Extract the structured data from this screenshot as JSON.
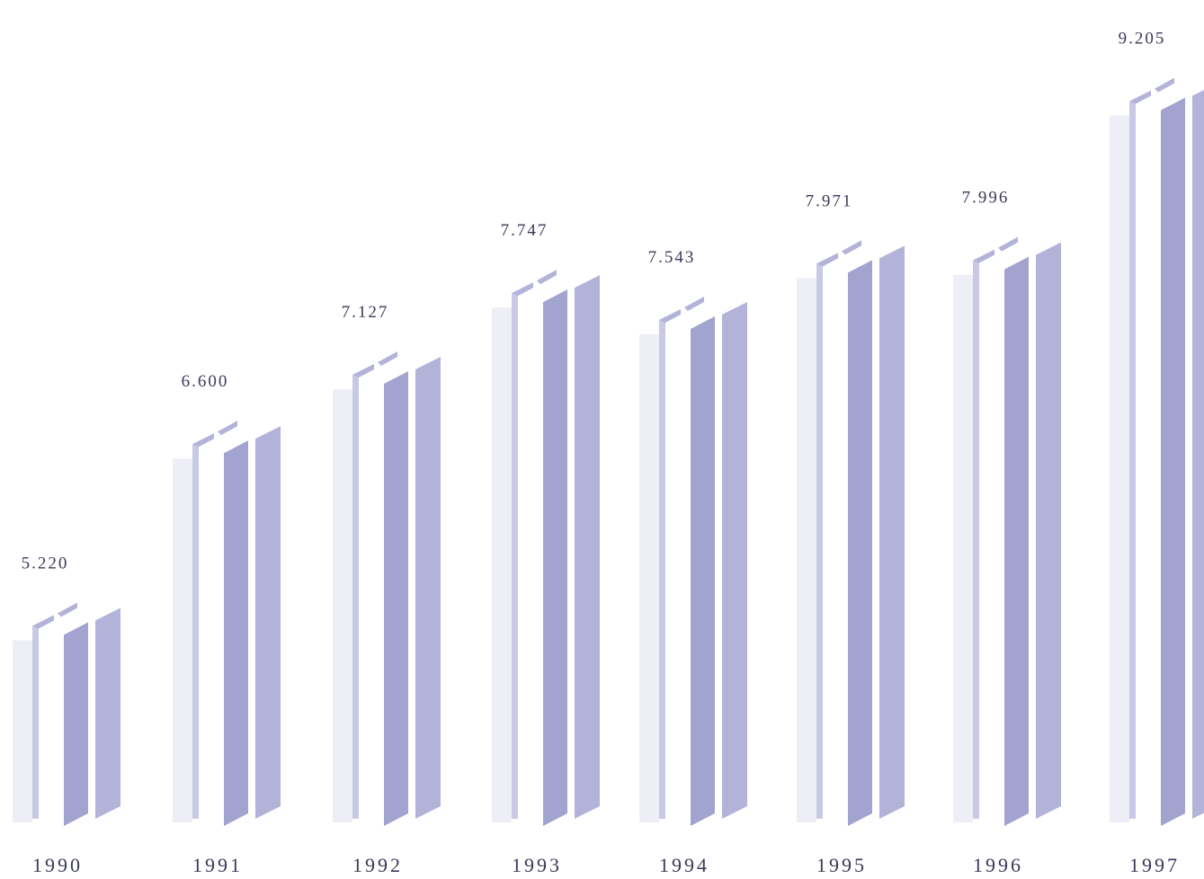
{
  "chart_data": {
    "type": "bar",
    "categories": [
      "1990",
      "1991",
      "1992",
      "1993",
      "1994",
      "1995",
      "1996",
      "1997"
    ],
    "values": [
      5.22,
      6.6,
      7.127,
      7.747,
      7.543,
      7.971,
      7.996,
      9.205
    ],
    "value_labels": [
      "5.220",
      "6.600",
      "7.127",
      "7.747",
      "7.543",
      "7.971",
      "7.996",
      "9.205"
    ],
    "title": "",
    "xlabel": "",
    "ylabel": "",
    "grid": false,
    "style": "3d-isometric-pillars",
    "colors": {
      "face_light": "#c9c9e6",
      "face_mid": "#b3b3d9",
      "face_dark": "#a3a3cf",
      "text": "#3a3a5a"
    }
  }
}
